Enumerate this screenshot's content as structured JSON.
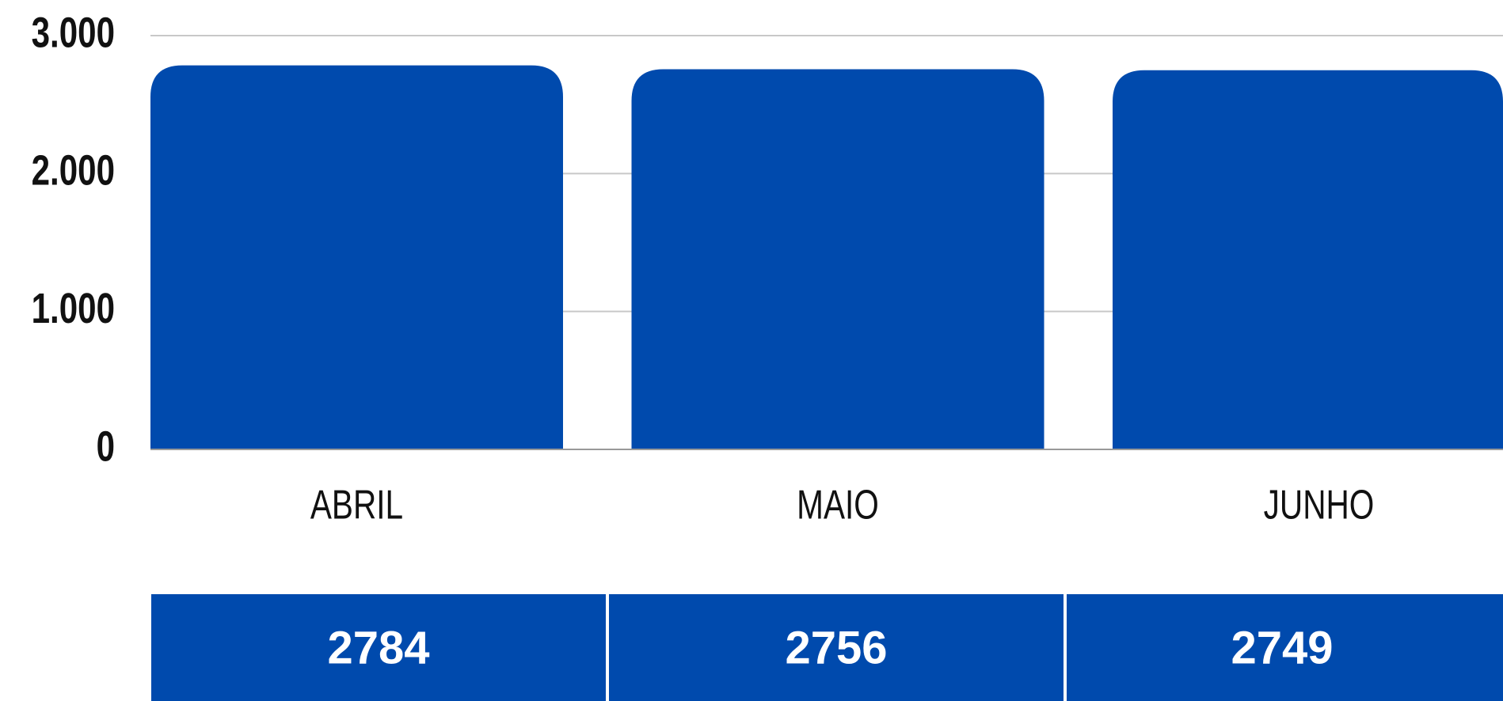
{
  "chart_data": {
    "type": "bar",
    "categories": [
      "ABRIL",
      "MAIO",
      "JUNHO"
    ],
    "values": [
      2784,
      2756,
      2749
    ],
    "color": "#004aad",
    "ylim": [
      0,
      3000
    ],
    "yticks": [
      0,
      {
        "value": 1000,
        "label": "1.000"
      },
      {
        "value": 2000,
        "label": "2.000"
      },
      {
        "value": 3000,
        "label": "3.000"
      }
    ],
    "grid": true
  }
}
